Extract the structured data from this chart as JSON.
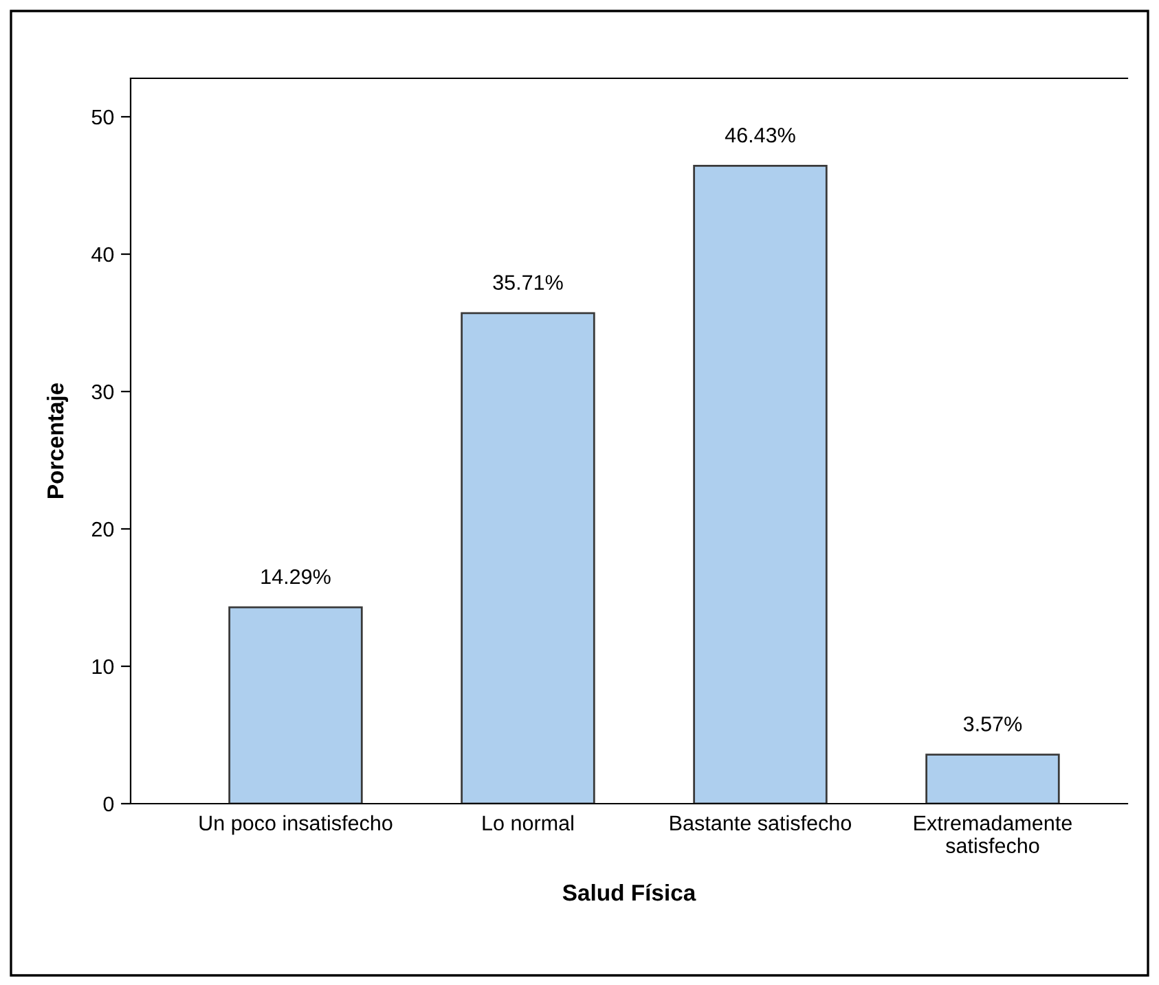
{
  "chart_data": {
    "type": "bar",
    "xlabel": "Salud Física",
    "ylabel": "Porcentaje",
    "categories": [
      "Un poco insatisfecho",
      "Lo normal",
      "Bastante satisfecho",
      "Extremadamente\nsatisfecho"
    ],
    "values": [
      14.29,
      35.71,
      46.43,
      3.57
    ],
    "value_labels": [
      "14.29%",
      "35.71%",
      "46.43%",
      "3.57%"
    ],
    "color": "#aecfee",
    "ylim": [
      0,
      52.8
    ],
    "yticks": [
      0,
      10,
      20,
      30,
      40,
      50
    ],
    "grid": false
  }
}
